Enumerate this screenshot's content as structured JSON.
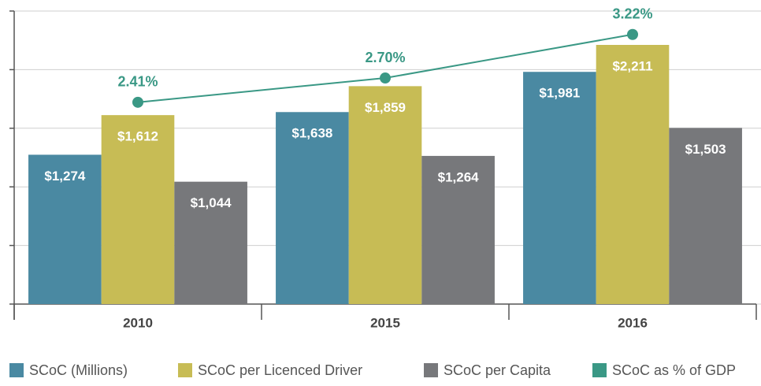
{
  "chart_data": {
    "type": "bar",
    "categories": [
      "2010",
      "2015",
      "2016"
    ],
    "series": [
      {
        "name": "SCoC (Millions)",
        "color": "#4a89a2",
        "values": [
          1274,
          1638,
          1981
        ],
        "value_labels": [
          "$1,274",
          "$1,638",
          "$1,981"
        ]
      },
      {
        "name": "SCoC per Licenced Driver",
        "color": "#c7bc55",
        "values": [
          1612,
          1859,
          2211
        ],
        "value_labels": [
          "$1,612",
          "$1,859",
          "$2,211"
        ]
      },
      {
        "name": "SCoC per Capita",
        "color": "#77787b",
        "values": [
          1044,
          1264,
          1503
        ],
        "value_labels": [
          "$1,044",
          "$1,264",
          "$1,503"
        ]
      },
      {
        "name": "SCoC as % of GDP",
        "color": "#3a9885",
        "type": "line",
        "axis": "y2",
        "values": [
          2.41,
          2.7,
          3.22
        ],
        "value_labels": [
          "2.41%",
          "2.70%",
          "3.22%"
        ]
      }
    ],
    "ylim": [
      0,
      2500
    ],
    "yticks": [
      0,
      500,
      1000,
      1500,
      2000,
      2500
    ],
    "y2lim": [
      0,
      3.5
    ],
    "grid": true
  }
}
